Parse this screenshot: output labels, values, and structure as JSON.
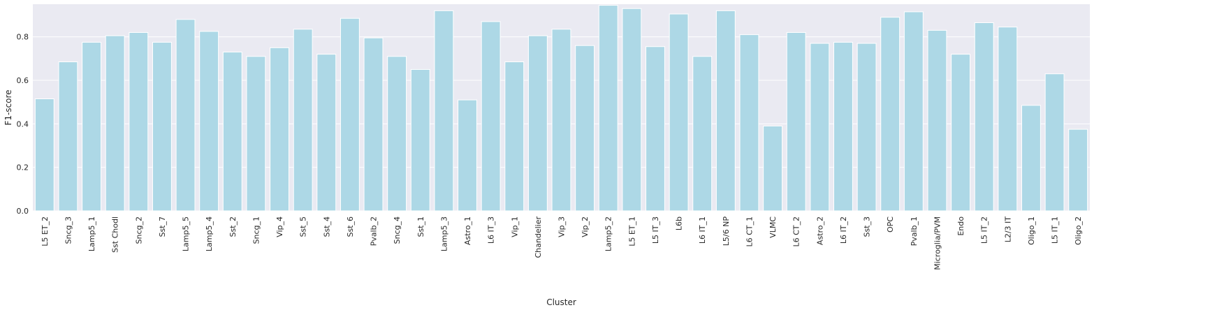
{
  "chart_data": {
    "type": "bar",
    "title": "",
    "xlabel": "Cluster",
    "ylabel": "F1-score",
    "ylim": [
      0,
      0.95
    ],
    "yticks": [
      "0.0",
      "0.2",
      "0.4",
      "0.6",
      "0.8"
    ],
    "grid": true,
    "bar_color": "#add8e6",
    "background_color": "#eaeaf2",
    "categories": [
      "L5 ET_2",
      "Sncg_3",
      "Lamp5_1",
      "Sst Chodl",
      "Sncg_2",
      "Sst_7",
      "Lamp5_5",
      "Lamp5_4",
      "Sst_2",
      "Sncg_1",
      "Vip_4",
      "Sst_5",
      "Sst_4",
      "Sst_6",
      "Pvalb_2",
      "Sncg_4",
      "Sst_1",
      "Lamp5_3",
      "Astro_1",
      "L6 IT_3",
      "Vip_1",
      "Chandelier",
      "Vip_3",
      "Vip_2",
      "Lamp5_2",
      "L5 ET_1",
      "L5 IT_3",
      "L6b",
      "L6 IT_1",
      "L5/6 NP",
      "L6 CT_1",
      "VLMC",
      "L6 CT_2",
      "Astro_2",
      "L6 IT_2",
      "Sst_3",
      "OPC",
      "Pvalb_1",
      "Microglia/PVM",
      "Endo",
      "L5 IT_2",
      "L2/3 IT",
      "Oligo_1",
      "L5 IT_1",
      "Oligo_2"
    ],
    "values": [
      0.515,
      0.685,
      0.775,
      0.805,
      0.82,
      0.775,
      0.88,
      0.825,
      0.73,
      0.71,
      0.75,
      0.835,
      0.72,
      0.885,
      0.795,
      0.71,
      0.65,
      0.92,
      0.51,
      0.87,
      0.685,
      0.805,
      0.835,
      0.76,
      0.945,
      0.93,
      0.755,
      0.905,
      0.71,
      0.92,
      0.81,
      0.39,
      0.82,
      0.77,
      0.775,
      0.77,
      0.89,
      0.915,
      0.83,
      0.72,
      0.865,
      0.845,
      0.485,
      0.63,
      0.375
    ]
  }
}
